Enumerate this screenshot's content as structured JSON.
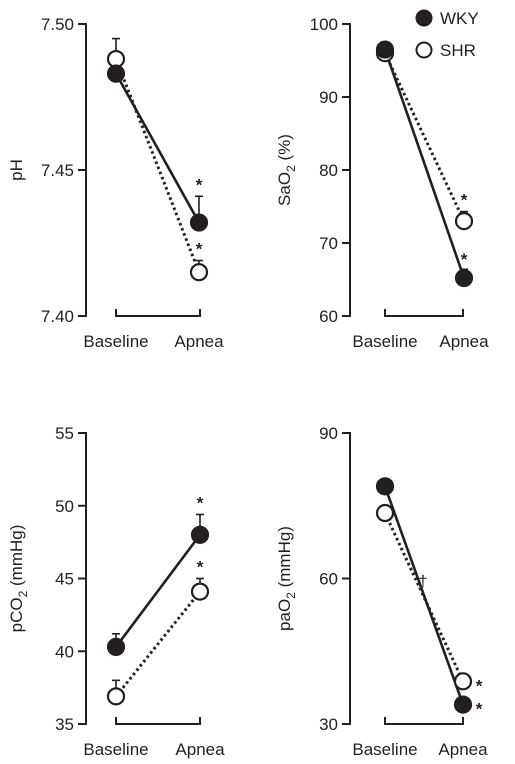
{
  "legend": [
    {
      "label": "WKY",
      "marker": "filled-circle"
    },
    {
      "label": "SHR",
      "marker": "open-circle"
    }
  ],
  "colors": {
    "ink": "#231f20",
    "open_fill": "#ffffff"
  },
  "chart_data": [
    {
      "type": "line",
      "ylabel": "pH",
      "ylabel_sub": "",
      "ylabel_tail": "",
      "categories": [
        "Baseline",
        "Apnea"
      ],
      "ylim": [
        7.4,
        7.5
      ],
      "yticks": [
        7.4,
        7.45,
        7.5
      ],
      "ytick_labels": [
        "7.40",
        "7.45",
        "7.50"
      ],
      "series": [
        {
          "name": "WKY",
          "values": [
            7.483,
            7.432
          ],
          "errors": [
            0.004,
            0.009
          ],
          "style": "solid",
          "marker": "filled"
        },
        {
          "name": "SHR",
          "values": [
            7.488,
            7.415
          ],
          "errors": [
            0.007,
            0.004
          ],
          "style": "dotted",
          "marker": "open"
        }
      ],
      "annotations": [
        {
          "series": 0,
          "index": 1,
          "text": "*",
          "side": "above"
        },
        {
          "series": 1,
          "index": 1,
          "text": "*",
          "side": "above"
        }
      ]
    },
    {
      "type": "line",
      "ylabel": "SaO",
      "ylabel_sub": "2",
      "ylabel_tail": " (%)",
      "categories": [
        "Baseline",
        "Apnea"
      ],
      "ylim": [
        60,
        100
      ],
      "yticks": [
        60,
        70,
        80,
        90,
        100
      ],
      "ytick_labels": [
        "60",
        "70",
        "80",
        "90",
        "100"
      ],
      "series": [
        {
          "name": "WKY",
          "values": [
            96.5,
            65.2
          ],
          "errors": [
            0.4,
            1.2
          ],
          "style": "solid",
          "marker": "filled"
        },
        {
          "name": "SHR",
          "values": [
            96.0,
            73.0
          ],
          "errors": [
            0.4,
            1.3
          ],
          "style": "dotted",
          "marker": "open"
        }
      ],
      "annotations": [
        {
          "series": 0,
          "index": 1,
          "text": "*",
          "side": "above-wide"
        },
        {
          "series": 1,
          "index": 1,
          "text": "*",
          "side": "above"
        }
      ]
    },
    {
      "type": "line",
      "ylabel": "pCO",
      "ylabel_sub": "2",
      "ylabel_tail": " (mmHg)",
      "categories": [
        "Baseline",
        "Apnea"
      ],
      "ylim": [
        35,
        55
      ],
      "yticks": [
        35,
        40,
        45,
        50,
        55
      ],
      "ytick_labels": [
        "35",
        "40",
        "45",
        "50",
        "55"
      ],
      "series": [
        {
          "name": "WKY",
          "values": [
            40.3,
            48.0
          ],
          "errors": [
            0.9,
            1.4
          ],
          "style": "solid",
          "marker": "filled"
        },
        {
          "name": "SHR",
          "values": [
            36.9,
            44.1
          ],
          "errors": [
            1.1,
            0.9
          ],
          "style": "dotted",
          "marker": "open"
        }
      ],
      "annotations": [
        {
          "series": 0,
          "index": 1,
          "text": "*",
          "side": "above"
        },
        {
          "series": 1,
          "index": 1,
          "text": "*",
          "side": "above"
        }
      ]
    },
    {
      "type": "line",
      "ylabel": "paO",
      "ylabel_sub": "2",
      "ylabel_tail": " (mmHg)",
      "categories": [
        "Baseline",
        "Apnea"
      ],
      "ylim": [
        30,
        90
      ],
      "yticks": [
        30,
        60,
        90
      ],
      "ytick_labels": [
        "30",
        "60",
        "90"
      ],
      "series": [
        {
          "name": "WKY",
          "values": [
            79.0,
            34.0
          ],
          "errors": [
            0,
            0
          ],
          "style": "solid",
          "marker": "filled"
        },
        {
          "name": "SHR",
          "values": [
            73.5,
            38.8
          ],
          "errors": [
            0,
            0
          ],
          "style": "dotted",
          "marker": "open"
        }
      ],
      "annotations": [
        {
          "series": 0,
          "index": 1,
          "text": "*",
          "side": "right"
        },
        {
          "series": 1,
          "index": 1,
          "text": "*",
          "side": "right"
        },
        {
          "series": -1,
          "index": -1,
          "text": "†",
          "side": "between"
        }
      ]
    }
  ]
}
